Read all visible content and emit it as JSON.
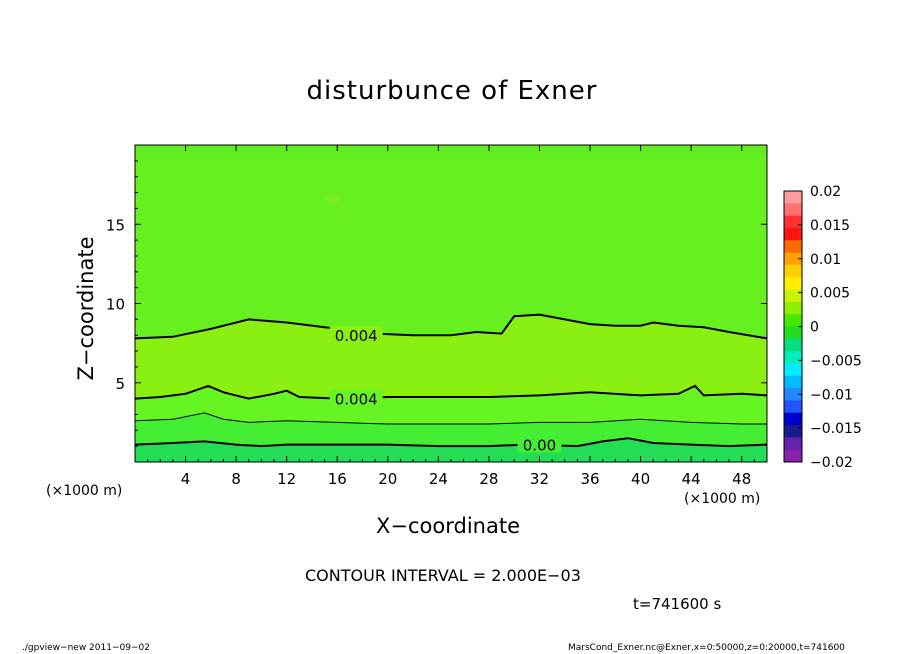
{
  "chart_data": {
    "type": "heatmap",
    "title": "disturbunce of Exner",
    "xlabel": "X−coordinate",
    "ylabel": "Z−coordinate",
    "x_unit": "(×1000 m)",
    "y_unit": "(×1000 m)",
    "xlim": [
      0,
      50
    ],
    "ylim": [
      0,
      20
    ],
    "x_ticks": [
      4,
      8,
      12,
      16,
      20,
      24,
      28,
      32,
      36,
      40,
      44,
      48
    ],
    "y_ticks": [
      5,
      10,
      15
    ],
    "grid": false,
    "bands": [
      {
        "z_bottom": 0,
        "z_top": 1.1,
        "color": "#22dd55"
      },
      {
        "z_bottom": 1.1,
        "z_top": 2.6,
        "color": "#44ee33"
      },
      {
        "z_bottom": 2.6,
        "z_top": 4.2,
        "color": "#66f522"
      },
      {
        "z_bottom": 4.2,
        "z_top": 8.3,
        "color": "#8af011"
      },
      {
        "z_bottom": 8.3,
        "z_top": 20,
        "color": "#66f020"
      }
    ],
    "contours": [
      {
        "label": "0.004",
        "label_x": 17.5,
        "label_y": 8.0,
        "width": 2,
        "points": [
          [
            0,
            7.8
          ],
          [
            3,
            7.9
          ],
          [
            6,
            8.4
          ],
          [
            9,
            9.0
          ],
          [
            12,
            8.8
          ],
          [
            15,
            8.5
          ],
          [
            17,
            8.3
          ],
          [
            19,
            8.1
          ],
          [
            22,
            8.0
          ],
          [
            25,
            8.0
          ],
          [
            27,
            8.2
          ],
          [
            29,
            8.1
          ],
          [
            30,
            9.2
          ],
          [
            32,
            9.3
          ],
          [
            34,
            9.0
          ],
          [
            36,
            8.7
          ],
          [
            38,
            8.6
          ],
          [
            40,
            8.6
          ],
          [
            41,
            8.8
          ],
          [
            43,
            8.6
          ],
          [
            45,
            8.5
          ],
          [
            47,
            8.2
          ],
          [
            50,
            7.8
          ]
        ]
      },
      {
        "label": "0.004",
        "label_x": 17.5,
        "label_y": 4.0,
        "width": 2,
        "points": [
          [
            0,
            4.0
          ],
          [
            2,
            4.1
          ],
          [
            4,
            4.3
          ],
          [
            5.8,
            4.8
          ],
          [
            7,
            4.4
          ],
          [
            9,
            4.0
          ],
          [
            11,
            4.3
          ],
          [
            12,
            4.5
          ],
          [
            13,
            4.1
          ],
          [
            16,
            4.0
          ],
          [
            20,
            4.1
          ],
          [
            24,
            4.1
          ],
          [
            28,
            4.1
          ],
          [
            32,
            4.2
          ],
          [
            36,
            4.4
          ],
          [
            40,
            4.2
          ],
          [
            43,
            4.3
          ],
          [
            44.3,
            4.8
          ],
          [
            45,
            4.2
          ],
          [
            48,
            4.3
          ],
          [
            50,
            4.2
          ]
        ]
      },
      {
        "label": "",
        "label_x": 0,
        "label_y": 0,
        "width": 1,
        "points": [
          [
            0,
            2.6
          ],
          [
            3,
            2.7
          ],
          [
            5.5,
            3.1
          ],
          [
            7,
            2.7
          ],
          [
            9,
            2.5
          ],
          [
            12,
            2.6
          ],
          [
            16,
            2.5
          ],
          [
            20,
            2.4
          ],
          [
            24,
            2.4
          ],
          [
            28,
            2.4
          ],
          [
            32,
            2.5
          ],
          [
            36,
            2.5
          ],
          [
            40,
            2.7
          ],
          [
            44,
            2.5
          ],
          [
            48,
            2.4
          ],
          [
            50,
            2.4
          ]
        ]
      },
      {
        "label": "0.00",
        "label_x": 32,
        "label_y": 1.1,
        "width": 2,
        "points": [
          [
            0,
            1.1
          ],
          [
            3,
            1.2
          ],
          [
            5.5,
            1.3
          ],
          [
            8,
            1.1
          ],
          [
            10,
            1.0
          ],
          [
            12,
            1.1
          ],
          [
            16,
            1.1
          ],
          [
            20,
            1.1
          ],
          [
            24,
            1.0
          ],
          [
            28,
            1.0
          ],
          [
            31,
            1.1
          ],
          [
            35,
            1.0
          ],
          [
            37,
            1.3
          ],
          [
            39,
            1.5
          ],
          [
            41,
            1.2
          ],
          [
            44,
            1.1
          ],
          [
            47,
            1.0
          ],
          [
            50,
            1.1
          ]
        ]
      }
    ],
    "colorbar": {
      "labels": [
        "0.02",
        "0.015",
        "0.01",
        "0.005",
        "0",
        "−0.005",
        "−0.01",
        "−0.015",
        "−0.02"
      ],
      "colors": [
        "#ff9d9d",
        "#ff7070",
        "#ff3030",
        "#ff1414",
        "#ff6a00",
        "#ffa200",
        "#ffd000",
        "#ffee00",
        "#ccf200",
        "#90ee00",
        "#44e800",
        "#22dd22",
        "#00e080",
        "#00eebb",
        "#00eeff",
        "#00bbff",
        "#2288ff",
        "#2255ff",
        "#0000cc",
        "#1a1a8f",
        "#6622aa",
        "#8822aa"
      ]
    },
    "contour_interval": "CONTOUR INTERVAL = 2.000E−03",
    "time": "t=741600 s"
  },
  "footer": {
    "left": "./gpview−new   2011−09−02",
    "right": "MarsCond_Exner.nc@Exner,x=0:50000,z=0:20000,t=741600"
  }
}
